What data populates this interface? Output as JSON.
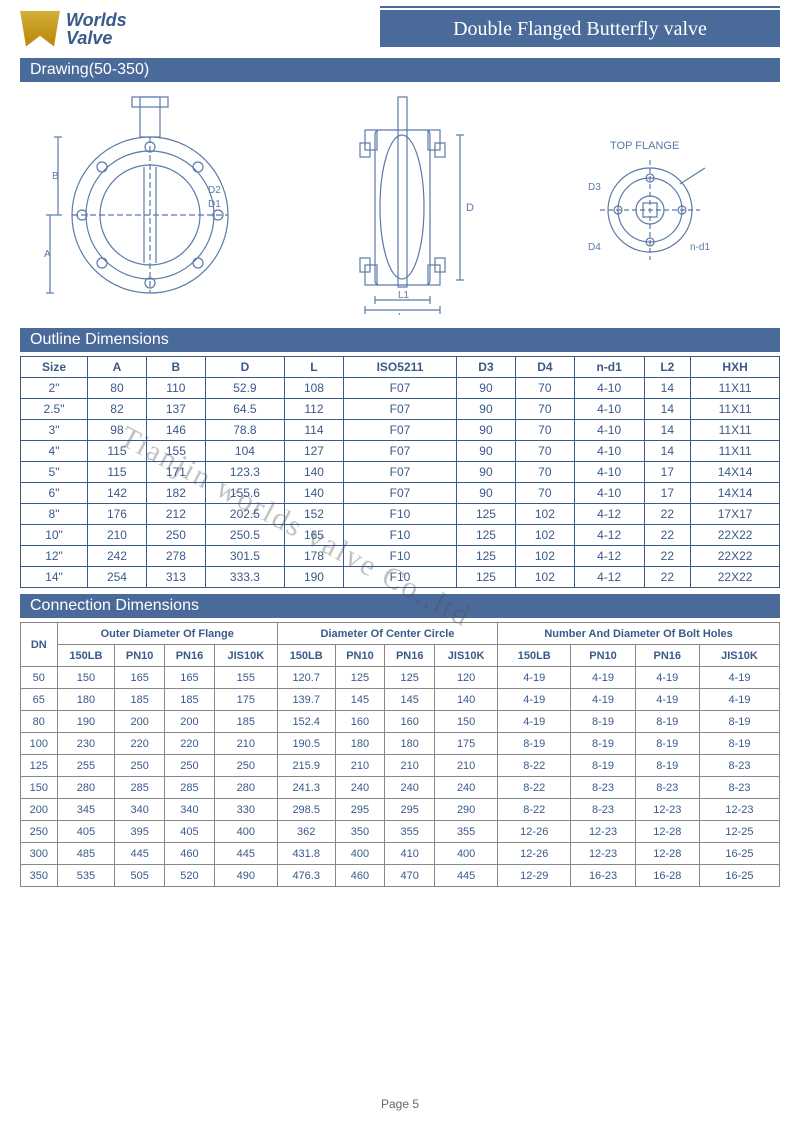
{
  "logo": {
    "line1": "Worlds",
    "line2": "Valve"
  },
  "title": "Double Flanged Butterfly valve",
  "section_drawing": "Drawing(50-350)",
  "section_outline": "Outline Dimensions",
  "section_connection": "Connection Dimensions",
  "top_flange_label": "TOP FLANGE",
  "drawing_labels": {
    "d1": "D1",
    "d2": "D2",
    "d": "D",
    "l": "L",
    "l1": "L1",
    "a": "A",
    "b": "B",
    "n_d1": "n-d1",
    "d3": "D3",
    "d4": "D4"
  },
  "outline": {
    "headers": [
      "Size",
      "A",
      "B",
      "D",
      "L",
      "ISO5211",
      "D3",
      "D4",
      "n-d1",
      "L2",
      "HXH"
    ],
    "rows": [
      [
        "2\"",
        "80",
        "110",
        "52.9",
        "108",
        "F07",
        "90",
        "70",
        "4-10",
        "14",
        "11X11"
      ],
      [
        "2.5\"",
        "82",
        "137",
        "64.5",
        "112",
        "F07",
        "90",
        "70",
        "4-10",
        "14",
        "11X11"
      ],
      [
        "3\"",
        "98",
        "146",
        "78.8",
        "114",
        "F07",
        "90",
        "70",
        "4-10",
        "14",
        "11X11"
      ],
      [
        "4\"",
        "115",
        "155",
        "104",
        "127",
        "F07",
        "90",
        "70",
        "4-10",
        "14",
        "11X11"
      ],
      [
        "5\"",
        "115",
        "171",
        "123.3",
        "140",
        "F07",
        "90",
        "70",
        "4-10",
        "17",
        "14X14"
      ],
      [
        "6\"",
        "142",
        "182",
        "155.6",
        "140",
        "F07",
        "90",
        "70",
        "4-10",
        "17",
        "14X14"
      ],
      [
        "8\"",
        "176",
        "212",
        "202.5",
        "152",
        "F10",
        "125",
        "102",
        "4-12",
        "22",
        "17X17"
      ],
      [
        "10\"",
        "210",
        "250",
        "250.5",
        "165",
        "F10",
        "125",
        "102",
        "4-12",
        "22",
        "22X22"
      ],
      [
        "12\"",
        "242",
        "278",
        "301.5",
        "178",
        "F10",
        "125",
        "102",
        "4-12",
        "22",
        "22X22"
      ],
      [
        "14\"",
        "254",
        "313",
        "333.3",
        "190",
        "F10",
        "125",
        "102",
        "4-12",
        "22",
        "22X22"
      ]
    ]
  },
  "connection": {
    "group_headers": [
      "Outer Diameter Of Flange",
      "Diameter Of Center Circle",
      "Number And Diameter Of Bolt Holes"
    ],
    "sub_headers": [
      "DN",
      "150LB",
      "PN10",
      "PN16",
      "JIS10K",
      "150LB",
      "PN10",
      "PN16",
      "JIS10K",
      "150LB",
      "PN10",
      "PN16",
      "JIS10K"
    ],
    "rows": [
      [
        "50",
        "150",
        "165",
        "165",
        "155",
        "120.7",
        "125",
        "125",
        "120",
        "4-19",
        "4-19",
        "4-19",
        "4-19"
      ],
      [
        "65",
        "180",
        "185",
        "185",
        "175",
        "139.7",
        "145",
        "145",
        "140",
        "4-19",
        "4-19",
        "4-19",
        "4-19"
      ],
      [
        "80",
        "190",
        "200",
        "200",
        "185",
        "152.4",
        "160",
        "160",
        "150",
        "4-19",
        "8-19",
        "8-19",
        "8-19"
      ],
      [
        "100",
        "230",
        "220",
        "220",
        "210",
        "190.5",
        "180",
        "180",
        "175",
        "8-19",
        "8-19",
        "8-19",
        "8-19"
      ],
      [
        "125",
        "255",
        "250",
        "250",
        "250",
        "215.9",
        "210",
        "210",
        "210",
        "8-22",
        "8-19",
        "8-19",
        "8-23"
      ],
      [
        "150",
        "280",
        "285",
        "285",
        "280",
        "241.3",
        "240",
        "240",
        "240",
        "8-22",
        "8-23",
        "8-23",
        "8-23"
      ],
      [
        "200",
        "345",
        "340",
        "340",
        "330",
        "298.5",
        "295",
        "295",
        "290",
        "8-22",
        "8-23",
        "12-23",
        "12-23"
      ],
      [
        "250",
        "405",
        "395",
        "405",
        "400",
        "362",
        "350",
        "355",
        "355",
        "12-26",
        "12-23",
        "12-28",
        "12-25"
      ],
      [
        "300",
        "485",
        "445",
        "460",
        "445",
        "431.8",
        "400",
        "410",
        "400",
        "12-26",
        "12-23",
        "12-28",
        "16-25"
      ],
      [
        "350",
        "535",
        "505",
        "520",
        "490",
        "476.3",
        "460",
        "470",
        "445",
        "12-29",
        "16-23",
        "16-28",
        "16-25"
      ]
    ]
  },
  "page_number": "Page 5",
  "watermark": "Tianjin worlds valve Co.,ltd",
  "colors": {
    "bar_bg": "#4a6a9a",
    "text": "#3a5a8a",
    "drawing_stroke": "#5a7aa8"
  }
}
